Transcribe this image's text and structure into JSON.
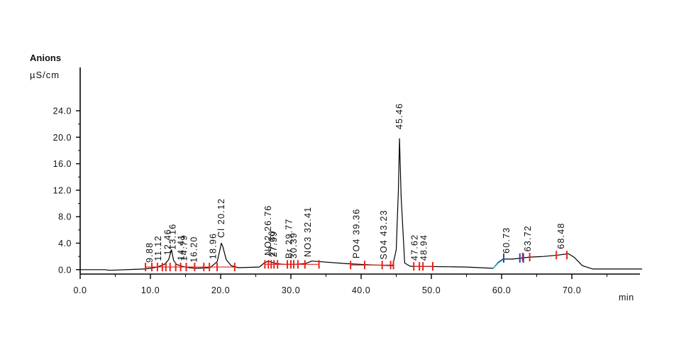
{
  "chart_data": {
    "type": "line",
    "title": "Anions",
    "ylabel": "µS/cm",
    "xlabel": "min",
    "xlim": [
      0,
      80
    ],
    "ylim": [
      -0.5,
      28
    ],
    "yticks": [
      0.0,
      4.0,
      8.0,
      12.0,
      16.0,
      20.0,
      24.0
    ],
    "ytick_labels": [
      "0.0",
      "4.0",
      "8.0",
      "12.0",
      "16.0",
      "20.0",
      "24.0"
    ],
    "xticks": [
      0,
      10,
      20,
      30,
      40,
      50,
      60,
      70
    ],
    "xtick_labels": [
      "0.0",
      "10.0",
      "20.0",
      "30.0",
      "40.0",
      "50.0",
      "60.0",
      "70.0"
    ],
    "grid": false,
    "series": [
      {
        "x": [
          0,
          3.5,
          4.2,
          9,
          10,
          11,
          12,
          12.6,
          13.0,
          13.3,
          13.7,
          14.5,
          15.5,
          16.5,
          18.5,
          19.5,
          19.9,
          20.1,
          20.3,
          20.8,
          21.5,
          22.5,
          25.5,
          26.2,
          26.8,
          27.3,
          28.0,
          29.0,
          30.5,
          32.0,
          33.0,
          38.0,
          42.0,
          44.5,
          45.0,
          45.3,
          45.46,
          45.7,
          46.2,
          47.0,
          48.0,
          55.0,
          58.8,
          59.5,
          60.2,
          61.5,
          62.5,
          64.0,
          66.0,
          68.0,
          69.5,
          70.3,
          71.5,
          73.0,
          80.0
        ],
        "y": [
          0.0,
          0.0,
          -0.1,
          0.1,
          0.2,
          0.4,
          0.8,
          1.5,
          3.0,
          1.4,
          0.8,
          0.5,
          0.3,
          0.2,
          0.3,
          1.2,
          3.0,
          4.0,
          3.5,
          1.5,
          0.6,
          0.3,
          0.4,
          1.0,
          1.3,
          1.1,
          0.9,
          0.8,
          0.8,
          0.9,
          1.3,
          0.9,
          0.7,
          0.6,
          3.0,
          12.0,
          19.8,
          11.0,
          1.0,
          0.5,
          0.5,
          0.4,
          0.2,
          1.1,
          1.6,
          1.6,
          1.7,
          1.9,
          2.0,
          2.2,
          2.4,
          1.9,
          0.6,
          0.1,
          0.1
        ]
      }
    ],
    "peak_labels": [
      {
        "text": "9.88",
        "x": 9.88
      },
      {
        "text": "11.12",
        "x": 11.12
      },
      {
        "text": "12.46",
        "x": 12.46
      },
      {
        "text": "13.16",
        "x": 13.16
      },
      {
        "text": "14.41",
        "x": 14.41
      },
      {
        "text": "14.79",
        "x": 14.79
      },
      {
        "text": "16.20",
        "x": 16.2
      },
      {
        "text": "18.96",
        "x": 18.96
      },
      {
        "text": "Cl 20.12",
        "x": 20.12
      },
      {
        "text": "NO2 26.76",
        "x": 26.76
      },
      {
        "text": "27.30",
        "x": 27.3
      },
      {
        "text": "27.59",
        "x": 27.59
      },
      {
        "text": "Br 29.77",
        "x": 29.77
      },
      {
        "text": "30.39",
        "x": 30.39
      },
      {
        "text": "NO3 32.41",
        "x": 32.41
      },
      {
        "text": "PO4 39.36",
        "x": 39.36
      },
      {
        "text": "SO4 43.23",
        "x": 43.23
      },
      {
        "text": "45.46",
        "x": 45.46
      },
      {
        "text": "47.62",
        "x": 47.62
      },
      {
        "text": "48.94",
        "x": 48.94
      },
      {
        "text": "60.73",
        "x": 60.73
      },
      {
        "text": "63.72",
        "x": 63.72
      },
      {
        "text": "68.48",
        "x": 68.48
      }
    ],
    "integration_markers_x": [
      9.3,
      10.2,
      11.0,
      11.7,
      12.2,
      12.8,
      13.6,
      14.3,
      15.1,
      16.3,
      17.6,
      18.4,
      19.5,
      22.0,
      26.3,
      26.8,
      27.2,
      27.6,
      28.1,
      29.5,
      30.0,
      30.4,
      31.0,
      32.0,
      34.0,
      38.5,
      40.5,
      43.0,
      44.2,
      44.6,
      47.5,
      48.3,
      48.8,
      50.2,
      63.0,
      64.0,
      67.8,
      69.3
    ],
    "blue_markers_x": [
      60.3,
      62.6,
      63.1
    ],
    "colors": {
      "trace": "#000000",
      "integration": "#e8221c",
      "blue": "#2446b8",
      "cyan": "#2fa6d6"
    }
  }
}
